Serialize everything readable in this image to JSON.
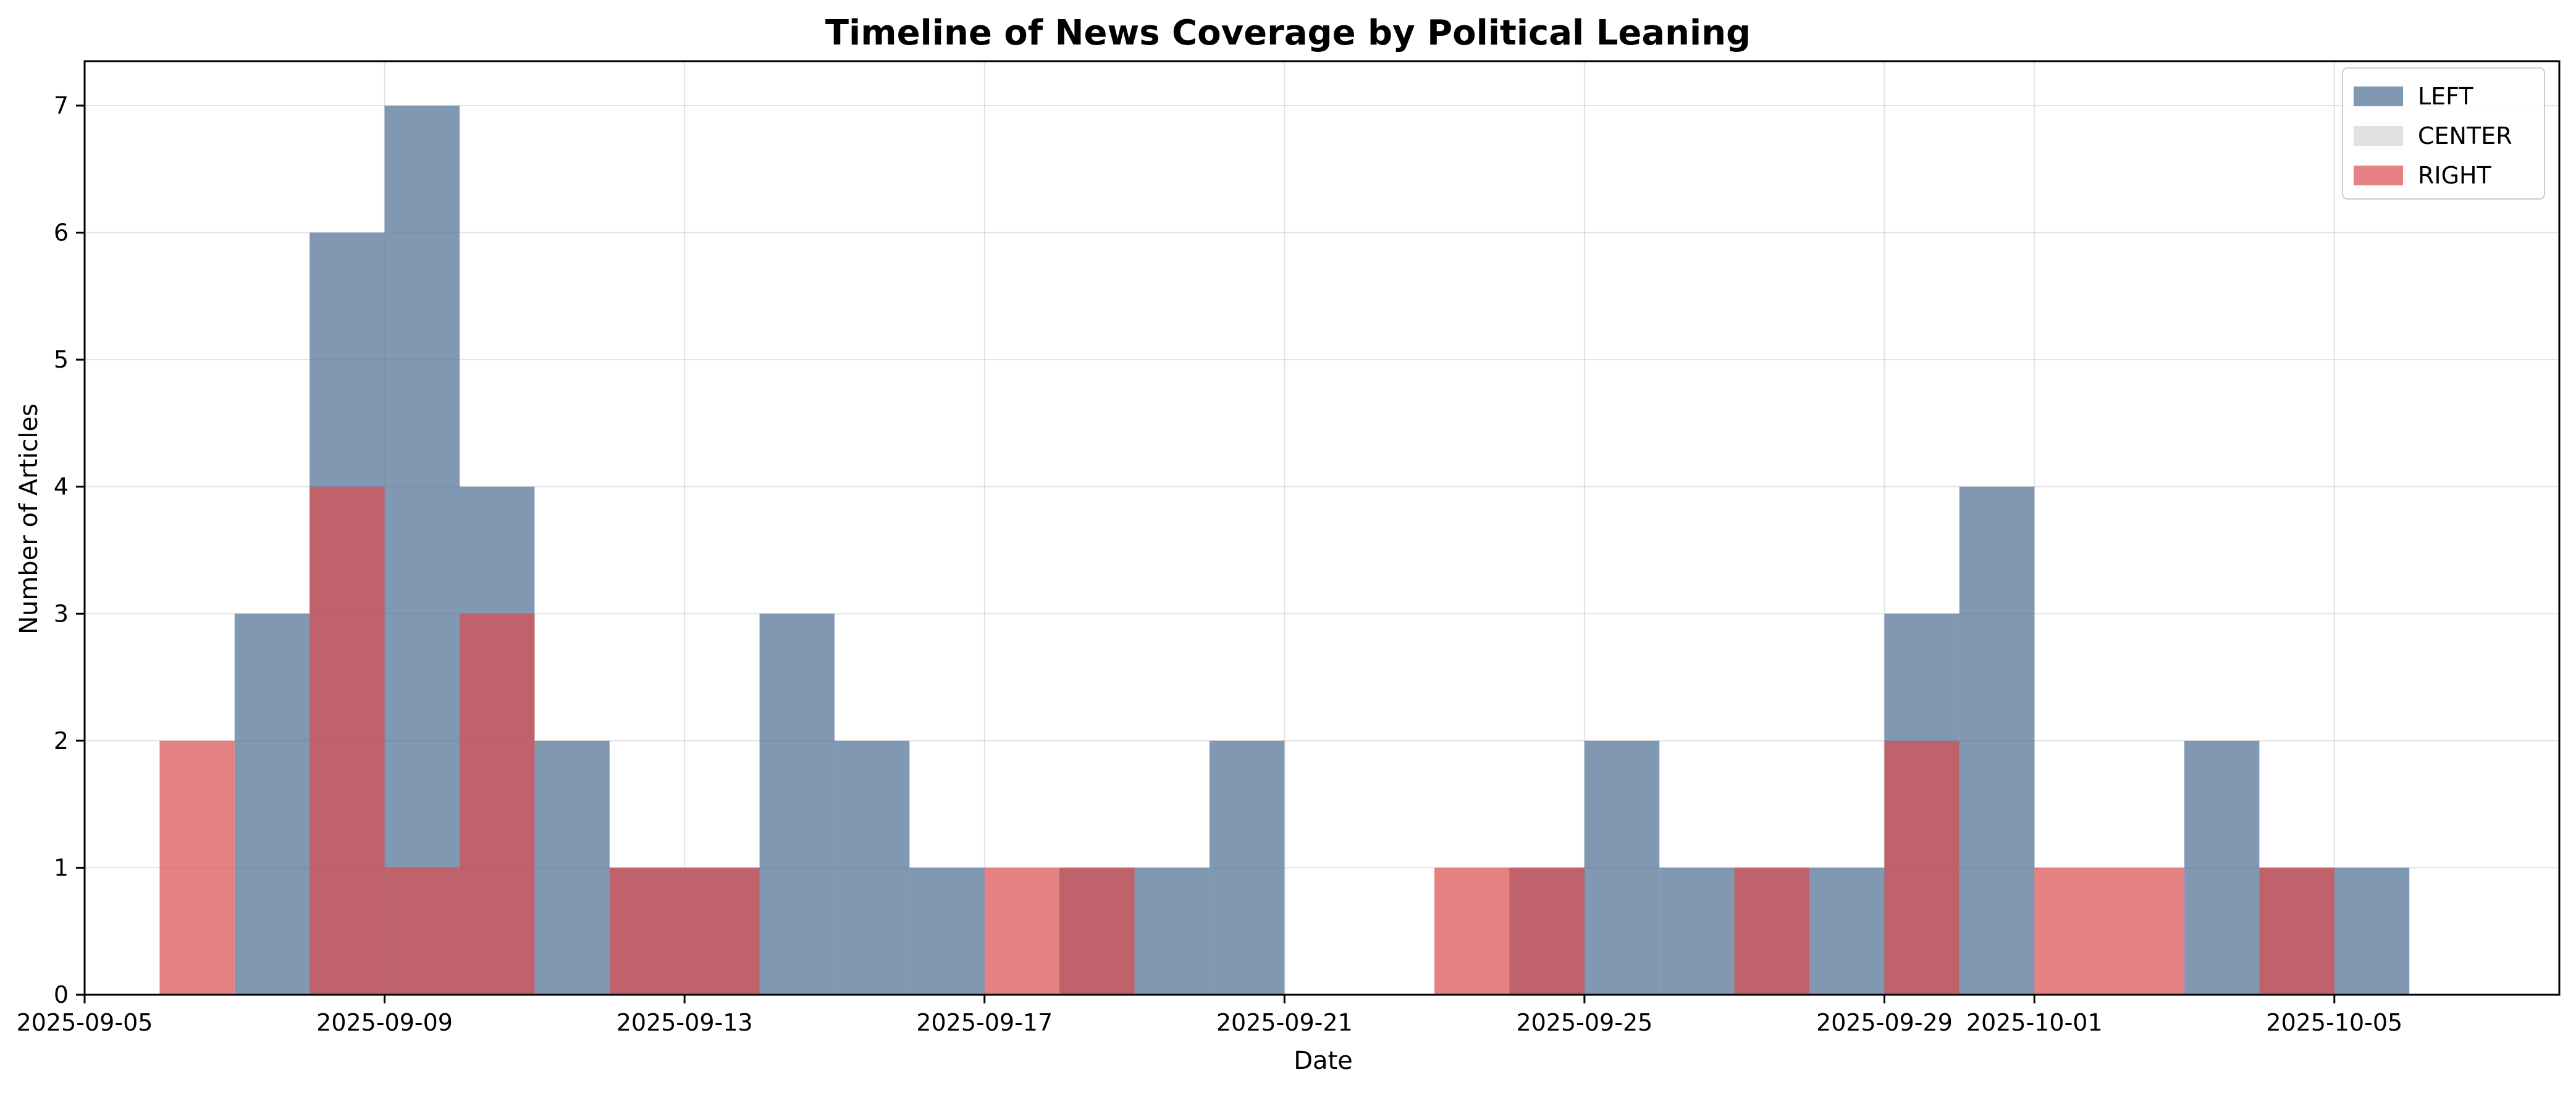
{
  "chart_data": {
    "type": "bar",
    "title": "Timeline of News Coverage by Political Leaning",
    "xlabel": "Date",
    "ylabel": "Number of Articles",
    "xlim": [
      "2025-09-05",
      "2025-10-08"
    ],
    "ylim": [
      0,
      7.35
    ],
    "x_ticks": [
      "2025-09-05",
      "2025-09-09",
      "2025-09-13",
      "2025-09-17",
      "2025-09-21",
      "2025-09-25",
      "2025-09-29",
      "2025-10-01",
      "2025-10-05"
    ],
    "y_ticks": [
      0,
      1,
      2,
      3,
      4,
      5,
      6,
      7
    ],
    "grid": true,
    "legend_position": "top-right",
    "series": [
      {
        "name": "LEFT",
        "color": "#4f7093",
        "opacity": 0.72,
        "bins": [
          {
            "start": "2025-09-07",
            "end": "2025-09-08",
            "count": 3
          },
          {
            "start": "2025-09-08",
            "end": "2025-09-09",
            "count": 6
          },
          {
            "start": "2025-09-09",
            "end": "2025-09-10",
            "count": 7
          },
          {
            "start": "2025-09-10",
            "end": "2025-09-11",
            "count": 4
          },
          {
            "start": "2025-09-11",
            "end": "2025-09-12",
            "count": 2
          },
          {
            "start": "2025-09-12",
            "end": "2025-09-13",
            "count": 1
          },
          {
            "start": "2025-09-13",
            "end": "2025-09-14",
            "count": 1
          },
          {
            "start": "2025-09-14",
            "end": "2025-09-15",
            "count": 3
          },
          {
            "start": "2025-09-15",
            "end": "2025-09-16",
            "count": 2
          },
          {
            "start": "2025-09-16",
            "end": "2025-09-17",
            "count": 1
          },
          {
            "start": "2025-09-18",
            "end": "2025-09-19",
            "count": 1
          },
          {
            "start": "2025-09-19",
            "end": "2025-09-20",
            "count": 1
          },
          {
            "start": "2025-09-20",
            "end": "2025-09-21",
            "count": 2
          },
          {
            "start": "2025-09-24",
            "end": "2025-09-25",
            "count": 1
          },
          {
            "start": "2025-09-25",
            "end": "2025-09-26",
            "count": 2
          },
          {
            "start": "2025-09-26",
            "end": "2025-09-27",
            "count": 1
          },
          {
            "start": "2025-09-27",
            "end": "2025-09-28",
            "count": 1
          },
          {
            "start": "2025-09-28",
            "end": "2025-09-29",
            "count": 1
          },
          {
            "start": "2025-09-29",
            "end": "2025-09-30",
            "count": 3
          },
          {
            "start": "2025-09-30",
            "end": "2025-10-01",
            "count": 4
          },
          {
            "start": "2025-10-03",
            "end": "2025-10-04",
            "count": 2
          },
          {
            "start": "2025-10-04",
            "end": "2025-10-05",
            "count": 1
          },
          {
            "start": "2025-10-05",
            "end": "2025-10-06",
            "count": 1
          }
        ]
      },
      {
        "name": "CENTER",
        "color": "#d9d9d9",
        "opacity": 0.8,
        "bins": []
      },
      {
        "name": "RIGHT",
        "color": "#dc4c4f",
        "opacity": 0.7,
        "bins": [
          {
            "start": "2025-09-06",
            "end": "2025-09-07",
            "count": 2
          },
          {
            "start": "2025-09-08",
            "end": "2025-09-09",
            "count": 4
          },
          {
            "start": "2025-09-09",
            "end": "2025-09-10",
            "count": 1
          },
          {
            "start": "2025-09-10",
            "end": "2025-09-11",
            "count": 3
          },
          {
            "start": "2025-09-12",
            "end": "2025-09-14",
            "count": 1
          },
          {
            "start": "2025-09-17",
            "end": "2025-09-18",
            "count": 1
          },
          {
            "start": "2025-09-18",
            "end": "2025-09-19",
            "count": 1
          },
          {
            "start": "2025-09-23",
            "end": "2025-09-25",
            "count": 1
          },
          {
            "start": "2025-09-27",
            "end": "2025-09-28",
            "count": 1
          },
          {
            "start": "2025-09-29",
            "end": "2025-09-30",
            "count": 2
          },
          {
            "start": "2025-10-01",
            "end": "2025-10-03",
            "count": 1
          },
          {
            "start": "2025-10-04",
            "end": "2025-10-05",
            "count": 1
          }
        ]
      }
    ]
  }
}
